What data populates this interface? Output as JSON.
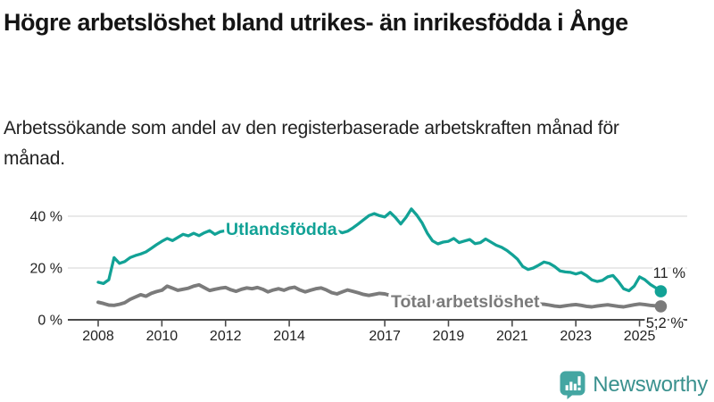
{
  "header": {
    "title": "Högre arbetslöshet bland utrikes- än inrikesfödda i Ånge",
    "subtitle": "Arbetssökande som andel av den registerbaserade arbetskraften månad för månad."
  },
  "chart_data": {
    "type": "line",
    "title": "Högre arbetslöshet bland utrikes- än inrikesfödda i Ånge",
    "xlabel": "",
    "ylabel": "",
    "grid": true,
    "legend_position": "inline-on-lines",
    "ylim": [
      0,
      45
    ],
    "xlim": [
      2007.0,
      2026.4
    ],
    "y_ticks": [
      {
        "value": 0,
        "label": "0 %"
      },
      {
        "value": 20,
        "label": "20 %"
      },
      {
        "value": 40,
        "label": "40 %"
      }
    ],
    "x_ticks": [
      {
        "value": 2008,
        "label": "2008"
      },
      {
        "value": 2010,
        "label": "2010"
      },
      {
        "value": 2012,
        "label": "2012"
      },
      {
        "value": 2014,
        "label": "2014"
      },
      {
        "value": 2017,
        "label": "2017"
      },
      {
        "value": 2019,
        "label": "2019"
      },
      {
        "value": 2021,
        "label": "2021"
      },
      {
        "value": 2023,
        "label": "2023"
      },
      {
        "value": 2025,
        "label": "2025"
      }
    ],
    "x_start": 2008.0,
    "x_step": 0.16667,
    "x_unit": "decimal-year (monthly data, sampled every 2 months)",
    "y_unit": "percent of labour force",
    "series": [
      {
        "name": "Utlandsfödda",
        "color": "#12a296",
        "end_label": "11 %",
        "end_value": 11,
        "values": [
          14.5,
          14.0,
          15.5,
          24.0,
          21.8,
          22.5,
          24.0,
          24.8,
          25.4,
          26.2,
          27.6,
          29.0,
          30.3,
          31.4,
          30.6,
          31.8,
          33.0,
          32.4,
          33.4,
          32.5,
          33.6,
          34.4,
          33.0,
          34.0,
          34.4,
          33.0,
          32.6,
          33.8,
          35.0,
          34.0,
          33.4,
          34.4,
          33.0,
          33.6,
          33.2,
          34.0,
          34.4,
          33.4,
          34.0,
          33.0,
          33.6,
          34.2,
          34.0,
          33.2,
          33.6,
          34.4,
          33.6,
          34.2,
          35.5,
          37.0,
          38.6,
          40.2,
          41.0,
          40.2,
          39.7,
          41.5,
          39.5,
          37.0,
          39.5,
          42.8,
          40.5,
          37.5,
          33.5,
          30.5,
          29.3,
          30.0,
          30.3,
          31.4,
          29.8,
          30.4,
          31.0,
          29.4,
          29.8,
          31.2,
          30.0,
          28.8,
          28.0,
          26.8,
          25.2,
          23.4,
          20.6,
          19.4,
          20.0,
          21.1,
          22.3,
          21.8,
          20.6,
          18.9,
          18.5,
          18.3,
          17.7,
          18.3,
          17.1,
          15.4,
          14.8,
          15.2,
          16.6,
          17.1,
          14.8,
          12.0,
          11.2,
          13.0,
          16.6,
          15.5,
          13.7,
          12.4,
          11.0
        ]
      },
      {
        "name": "Total arbetslöshet",
        "color": "#7b7b7b",
        "end_label": "5,2 %",
        "end_value": 5.2,
        "values": [
          6.8,
          6.3,
          5.7,
          5.6,
          6.0,
          6.6,
          7.9,
          8.8,
          9.7,
          9.1,
          10.2,
          10.9,
          11.4,
          13.0,
          12.2,
          11.4,
          11.8,
          12.2,
          13.0,
          13.5,
          12.4,
          11.3,
          11.8,
          12.2,
          12.5,
          11.6,
          11.0,
          11.8,
          12.3,
          12.0,
          12.5,
          11.8,
          10.8,
          11.5,
          12.0,
          11.4,
          12.2,
          12.6,
          11.5,
          10.8,
          11.4,
          12.0,
          12.3,
          11.5,
          10.5,
          10.0,
          10.8,
          11.5,
          11.0,
          10.4,
          9.8,
          9.4,
          9.8,
          10.2,
          10.0,
          9.4,
          8.8,
          8.5,
          8.8,
          9.0,
          8.6,
          8.0,
          7.4,
          7.0,
          7.3,
          7.6,
          7.3,
          6.9,
          6.4,
          6.2,
          6.5,
          6.8,
          6.6,
          7.3,
          7.6,
          7.2,
          6.9,
          6.7,
          6.8,
          6.4,
          6.0,
          5.7,
          5.9,
          6.1,
          6.0,
          5.7,
          5.3,
          5.1,
          5.4,
          5.7,
          5.9,
          5.6,
          5.2,
          5.0,
          5.3,
          5.6,
          5.8,
          5.5,
          5.2,
          5.0,
          5.4,
          5.8,
          6.1,
          5.9,
          5.6,
          5.4,
          5.2
        ]
      }
    ],
    "colors": {
      "accent_teal": "#12a296",
      "line_gray": "#7b7b7b",
      "axis": "#4a4a4a",
      "gridline": "#dcdcdc",
      "annotation_text": "#222222"
    }
  },
  "footer": {
    "brand": "Newsworthy",
    "brand_color": "#3a918e",
    "icon": "newsworthy-speech-bubble-bar-chart-icon"
  }
}
